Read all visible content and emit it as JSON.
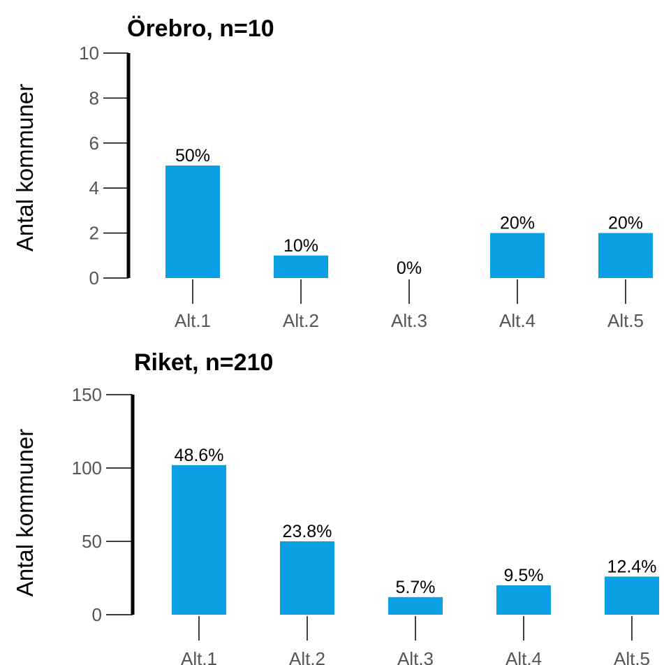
{
  "chart_data": [
    {
      "type": "bar",
      "title": "Örebro, n=10",
      "ylabel": "Antal kommuner",
      "xlabel": "",
      "ylim": [
        0,
        10
      ],
      "yticks": [
        "0",
        "2",
        "4",
        "6",
        "8",
        "10"
      ],
      "categories": [
        "Alt.1",
        "Alt.2",
        "Alt.3",
        "Alt.4",
        "Alt.5"
      ],
      "values": [
        5,
        1,
        0,
        2,
        2
      ],
      "data_labels": [
        "50%",
        "10%",
        "0%",
        "20%",
        "20%"
      ],
      "bar_color": "#0a9ee3",
      "grid": false
    },
    {
      "type": "bar",
      "title": "Riket, n=210",
      "ylabel": "Antal kommuner",
      "xlabel": "",
      "ylim": [
        0,
        150
      ],
      "yticks": [
        "0",
        "50",
        "100",
        "150"
      ],
      "categories": [
        "Alt.1",
        "Alt.2",
        "Alt.3",
        "Alt.4",
        "Alt.5"
      ],
      "values": [
        102,
        50,
        12,
        20,
        26
      ],
      "data_labels": [
        "48.6%",
        "23.8%",
        "5.7%",
        "9.5%",
        "12.4%"
      ],
      "bar_color": "#0a9ee3",
      "grid": false
    }
  ]
}
